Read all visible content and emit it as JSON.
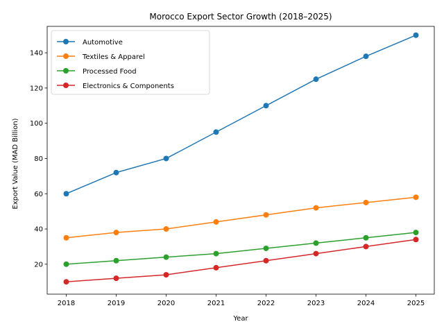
{
  "chart_data": {
    "type": "line",
    "title": "Morocco Export Sector Growth (2018–2025)",
    "xlabel": "Year",
    "ylabel": "Export Value (MAD Billion)",
    "categories": [
      "2018",
      "2019",
      "2020",
      "2021",
      "2022",
      "2023",
      "2024",
      "2025"
    ],
    "ylim": [
      3,
      155
    ],
    "yticks": [
      20,
      40,
      60,
      80,
      100,
      120,
      140
    ],
    "grid": false,
    "legend_position": "top-left",
    "series": [
      {
        "name": "Automotive",
        "color": "#1f77b4",
        "values": [
          60,
          72,
          80,
          95,
          110,
          125,
          138,
          150
        ]
      },
      {
        "name": "Textiles & Apparel",
        "color": "#ff7f0e",
        "values": [
          35,
          38,
          40,
          44,
          48,
          52,
          55,
          58
        ]
      },
      {
        "name": "Processed Food",
        "color": "#2ca02c",
        "values": [
          20,
          22,
          24,
          26,
          29,
          32,
          35,
          38
        ]
      },
      {
        "name": "Electronics & Components",
        "color": "#d62728",
        "values": [
          10,
          12,
          14,
          18,
          22,
          26,
          30,
          34
        ]
      }
    ]
  }
}
